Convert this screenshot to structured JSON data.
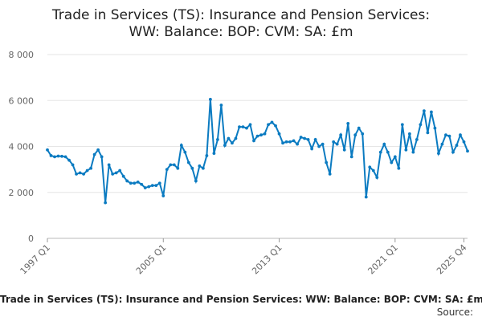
{
  "chart_data": {
    "type": "line",
    "title_line1": "Trade in Services (TS): Insurance and Pension Services:",
    "title_line2": "WW: Balance: BOP: CVM: SA: £m",
    "y_ticks": [
      "0",
      "2 000",
      "4 000",
      "6 000",
      "8 000"
    ],
    "ylim": [
      0,
      8000
    ],
    "x_ticks": [
      "1997 Q1",
      "2005 Q1",
      "2013 Q1",
      "2021 Q1",
      "2025 Q4"
    ],
    "x_range": [
      "1997 Q1",
      "2025 Q4"
    ],
    "grid": true,
    "series_color": "#0b7bc1",
    "series": [
      {
        "values": [
          3850,
          3600,
          3550,
          3580,
          3570,
          3550,
          3400,
          3200,
          2800,
          2850,
          2800,
          2950,
          3050,
          3650,
          3850,
          3550,
          1550,
          3200,
          2800,
          2850,
          2950,
          2700,
          2500,
          2400,
          2400,
          2450,
          2350,
          2200,
          2250,
          2300,
          2300,
          2400,
          1850,
          3000,
          3200,
          3200,
          3050,
          4050,
          3750,
          3300,
          3050,
          2500,
          3150,
          3050,
          3600,
          6050,
          3700,
          4300,
          5800,
          4050,
          4350,
          4150,
          4350,
          4850,
          4850,
          4800,
          4950,
          4250,
          4450,
          4500,
          4550,
          4950,
          5050,
          4900,
          4550,
          4150,
          4200,
          4200,
          4250,
          4100,
          4400,
          4350,
          4300,
          3900,
          4300,
          4000,
          4100,
          3300,
          2800,
          4200,
          4100,
          4500,
          3850,
          5000,
          3550,
          4500,
          4800,
          4550,
          1800,
          3100,
          2950,
          2650,
          3750,
          4100,
          3750,
          3300,
          3550,
          3050,
          4950,
          3850,
          4550,
          3750,
          4300,
          4950,
          5550,
          4600,
          5500,
          4800,
          3700,
          4100,
          4500,
          4450,
          3750,
          4050,
          4500,
          4200,
          3800
        ]
      }
    ]
  },
  "footer": {
    "series_title": "Trade in Services (TS): Insurance and Pension Services: WW: Balance: BOP: CVM: SA: £m",
    "source_label": "Source:"
  }
}
